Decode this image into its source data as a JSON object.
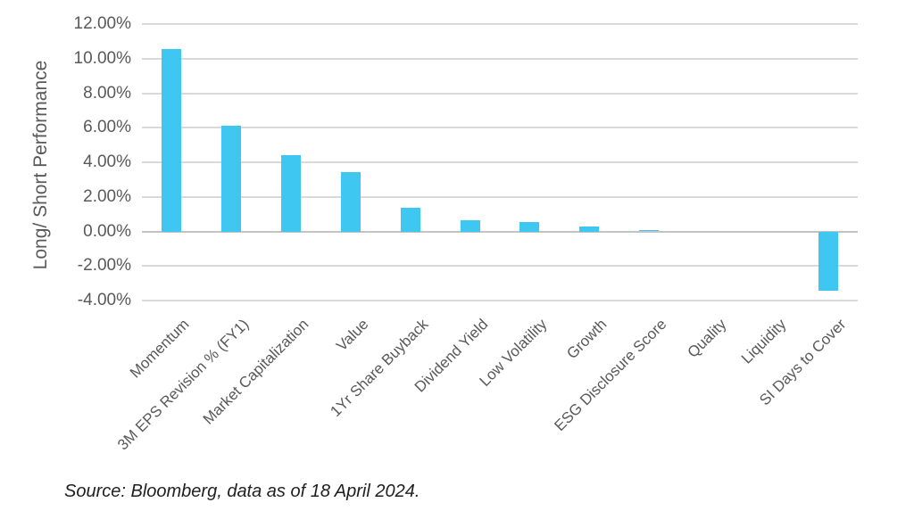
{
  "chart_data": {
    "type": "bar",
    "title": "",
    "xlabel": "",
    "ylabel": "Long/ Short Performance",
    "categories": [
      "Momentum",
      "3M EPS Revision % (FY1)",
      "Market Capitalization",
      "Value",
      "1Yr Share Buyback",
      "Dividend Yield",
      "Low Volatility",
      "Growth",
      "ESG Disclosure Score",
      "Quality",
      "Liquidity",
      "SI Days to Cover"
    ],
    "values": [
      10.55,
      6.1,
      4.4,
      3.45,
      1.35,
      0.65,
      0.55,
      0.3,
      0.08,
      0.0,
      0.0,
      -3.45
    ],
    "value_unit": "%",
    "ylim": [
      -4,
      12
    ],
    "ytick_step": 2,
    "ytick_labels": [
      "12.00%",
      "10.00%",
      "8.00%",
      "6.00%",
      "4.00%",
      "2.00%",
      "0.00%",
      "-2.00%",
      "-4.00%"
    ],
    "grid": true,
    "legend": false,
    "bar_color": "#3ec7f0"
  },
  "source_note": "Source: Bloomberg, data as of 18 April 2024.",
  "colors": {
    "bar": "#3ec7f0",
    "grid_line": "#d9d9d9",
    "zero_line": "#c3c3c3",
    "axis_text": "#595959",
    "note_text": "#1f1f1f",
    "background": "#ffffff"
  }
}
